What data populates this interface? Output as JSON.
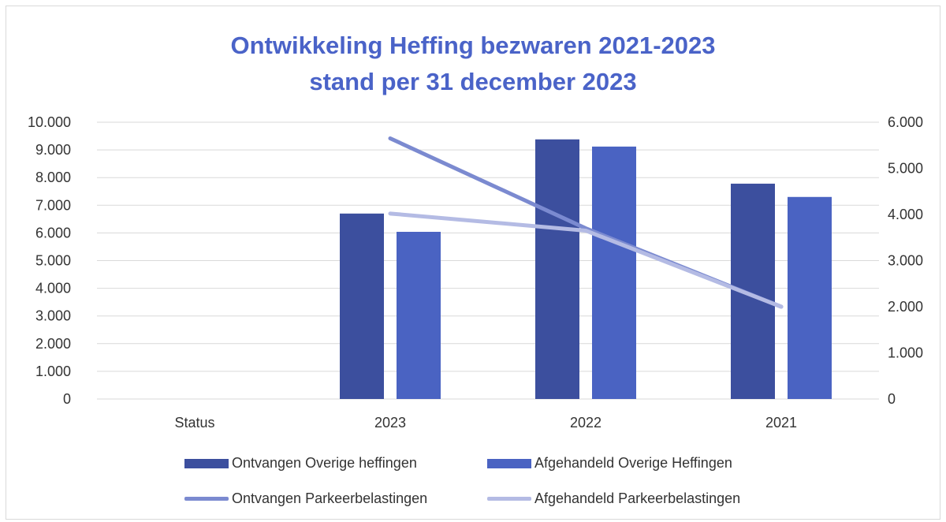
{
  "chart_data": {
    "type": "bar",
    "title": [
      "Ontwikkeling Heffing bezwaren 2021-2023",
      "stand per 31 december 2023"
    ],
    "categories": [
      "Status",
      "2023",
      "2022",
      "2021"
    ],
    "y_left": {
      "ticks": [
        "10.000",
        "9.000",
        "8.000",
        "7.000",
        "6.000",
        "5.000",
        "4.000",
        "3.000",
        "2.000",
        "1.000",
        "0"
      ],
      "ylim": [
        0,
        10000
      ]
    },
    "y_right": {
      "ticks": [
        "6.000",
        "5.000",
        "4.000",
        "3.000",
        "2.000",
        "1.000",
        "0"
      ],
      "ylim": [
        0,
        6000
      ]
    },
    "series": [
      {
        "name": "Ontvangen Overige heffingen",
        "kind": "bar",
        "axis": "left",
        "color": "#3c4f9e",
        "values": [
          null,
          6700,
          9380,
          7780
        ]
      },
      {
        "name": "Afgehandeld Overige Heffingen",
        "kind": "bar",
        "axis": "left",
        "color": "#4a63c2",
        "values": [
          null,
          6040,
          9120,
          7300
        ]
      },
      {
        "name": "Ontvangen Parkeerbelastingen",
        "kind": "line",
        "axis": "right",
        "color": "#7b8ad0",
        "values": [
          null,
          5650,
          3700,
          2000
        ]
      },
      {
        "name": "Afgehandeld Parkeerbelastingen",
        "kind": "line",
        "axis": "right",
        "color": "#b4bbe4",
        "values": [
          null,
          4020,
          3650,
          2000
        ]
      }
    ],
    "grid": true,
    "legend_position": "bottom"
  }
}
